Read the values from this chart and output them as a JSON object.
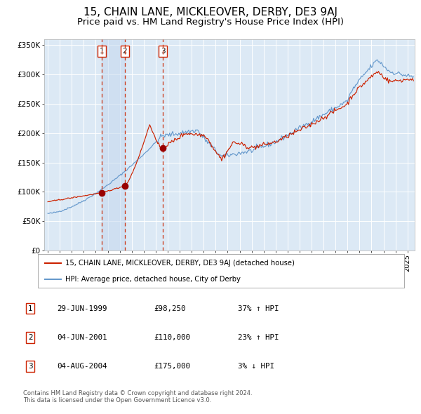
{
  "title": "15, CHAIN LANE, MICKLEOVER, DERBY, DE3 9AJ",
  "subtitle": "Price paid vs. HM Land Registry's House Price Index (HPI)",
  "title_fontsize": 11,
  "subtitle_fontsize": 9.5,
  "bg_color": "#dce9f5",
  "grid_color": "#ffffff",
  "hpi_line_color": "#6699cc",
  "price_line_color": "#cc2200",
  "marker_color": "#990000",
  "ylim": [
    0,
    360000
  ],
  "xlim_start": 1994.7,
  "xlim_end": 2025.6,
  "sales": [
    {
      "num": 1,
      "date_x": 1999.49,
      "price": 98250,
      "label": "1",
      "vline_x": 1999.49
    },
    {
      "num": 2,
      "date_x": 2001.42,
      "price": 110000,
      "label": "2",
      "vline_x": 2001.42
    },
    {
      "num": 3,
      "date_x": 2004.59,
      "price": 175000,
      "label": "3",
      "vline_x": 2004.59
    }
  ],
  "legend_entries": [
    "15, CHAIN LANE, MICKLEOVER, DERBY, DE3 9AJ (detached house)",
    "HPI: Average price, detached house, City of Derby"
  ],
  "table_rows": [
    {
      "num": "1",
      "date": "29-JUN-1999",
      "price": "£98,250",
      "hpi": "37% ↑ HPI"
    },
    {
      "num": "2",
      "date": "04-JUN-2001",
      "price": "£110,000",
      "hpi": "23% ↑ HPI"
    },
    {
      "num": "3",
      "date": "04-AUG-2004",
      "price": "£175,000",
      "hpi": "3% ↓ HPI"
    }
  ],
  "footer": "Contains HM Land Registry data © Crown copyright and database right 2024.\nThis data is licensed under the Open Government Licence v3.0."
}
